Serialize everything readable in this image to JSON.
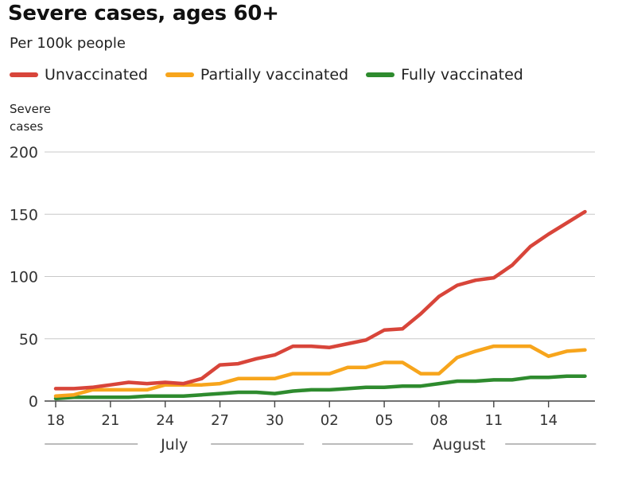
{
  "chart_data": {
    "type": "line",
    "title": "Severe cases, ages 60+",
    "subtitle": "Per 100k people",
    "ylabel_lines": [
      "Severe",
      "cases"
    ],
    "xlabel": "",
    "ylim": [
      0,
      200
    ],
    "yticks": [
      0,
      50,
      100,
      150,
      200
    ],
    "grid": true,
    "legend_position": "top-left",
    "x_ticks": [
      {
        "x": 0,
        "label": "18"
      },
      {
        "x": 3,
        "label": "21"
      },
      {
        "x": 6,
        "label": "24"
      },
      {
        "x": 9,
        "label": "27"
      },
      {
        "x": 12,
        "label": "30"
      },
      {
        "x": 15,
        "label": "02"
      },
      {
        "x": 18,
        "label": "05"
      },
      {
        "x": 21,
        "label": "08"
      },
      {
        "x": 24,
        "label": "11"
      },
      {
        "x": 27,
        "label": "14"
      }
    ],
    "month_labels": [
      {
        "label": "July",
        "start": -0.6,
        "end": 13.6
      },
      {
        "label": "August",
        "start": 14.6,
        "end": 29.6
      }
    ],
    "x": [
      0,
      1,
      2,
      3,
      4,
      5,
      6,
      7,
      8,
      9,
      10,
      11,
      12,
      13,
      14,
      15,
      16,
      17,
      18,
      19,
      20,
      21,
      22,
      23,
      24,
      25,
      26,
      27,
      28,
      29
    ],
    "series": [
      {
        "name": "Unvaccinated",
        "color": "#d8453a",
        "values": [
          10,
          10,
          11,
          13,
          15,
          14,
          15,
          14,
          18,
          29,
          30,
          34,
          37,
          44,
          44,
          43,
          46,
          49,
          57,
          58,
          70,
          84,
          93,
          97,
          99,
          109,
          124,
          134,
          143,
          152
        ]
      },
      {
        "name": "Partially vaccinated",
        "color": "#f7a51c",
        "values": [
          4,
          5,
          9,
          9,
          9,
          9,
          13,
          13,
          13,
          14,
          18,
          18,
          18,
          22,
          22,
          22,
          27,
          27,
          31,
          31,
          22,
          22,
          35,
          40,
          44,
          44,
          44,
          36,
          40,
          41
        ]
      },
      {
        "name": "Fully vaccinated",
        "color": "#2e8b2e",
        "values": [
          2,
          3,
          3,
          3,
          3,
          4,
          4,
          4,
          5,
          6,
          7,
          7,
          6,
          8,
          9,
          9,
          10,
          11,
          11,
          12,
          12,
          14,
          16,
          16,
          17,
          17,
          19,
          19,
          20,
          20
        ]
      }
    ]
  }
}
